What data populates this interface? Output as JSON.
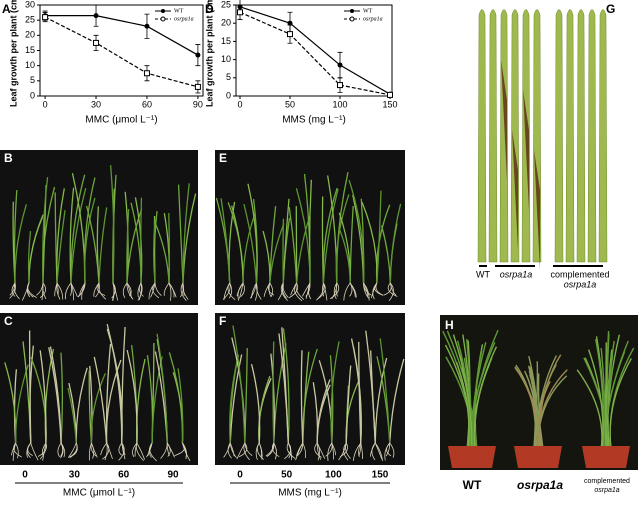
{
  "chart_data": [
    {
      "type": "line",
      "panel_label": "A",
      "y_label": "Leaf growth per plant (cm)",
      "x_label": "MMC (μmol L⁻¹)",
      "x": [
        0,
        30,
        60,
        90
      ],
      "xlim": [
        -3,
        93
      ],
      "xticks": [
        0,
        30,
        60,
        90
      ],
      "ylim": [
        0,
        30
      ],
      "yticks": [
        0,
        5,
        10,
        15,
        20,
        25,
        30
      ],
      "legend": "upper right",
      "series": [
        {
          "name": "WT",
          "color": "#000000",
          "marker": "filled",
          "dashed": false,
          "values": [
            26.5,
            26.5,
            23,
            13.5
          ],
          "errors": [
            1.5,
            3.5,
            4,
            3.5
          ]
        },
        {
          "name": "osrpa1a",
          "color": "#000000",
          "marker": "open",
          "dashed": true,
          "values": [
            26,
            17.5,
            7.5,
            3
          ],
          "errors": [
            1.5,
            2.5,
            2.5,
            2
          ]
        }
      ]
    },
    {
      "type": "line",
      "panel_label": "D",
      "y_label": "Leaf growth per plant (cm)",
      "x_label": "MMS (mg L⁻¹)",
      "x": [
        0,
        50,
        100,
        150
      ],
      "xlim": [
        -4,
        152
      ],
      "xticks": [
        0,
        50,
        100,
        150
      ],
      "ylim": [
        0,
        25
      ],
      "yticks": [
        0,
        5,
        10,
        15,
        20,
        25
      ],
      "legend": "upper right",
      "series": [
        {
          "name": "WT",
          "color": "#000000",
          "marker": "filled",
          "dashed": false,
          "values": [
            24.5,
            20,
            8.5,
            0.5
          ],
          "errors": [
            2,
            3,
            3.5,
            0.5
          ]
        },
        {
          "name": "osrpa1a",
          "color": "#000000",
          "marker": "open",
          "dashed": true,
          "values": [
            23,
            17,
            3,
            0.3
          ],
          "errors": [
            2,
            2.5,
            2,
            0.3
          ]
        }
      ]
    }
  ],
  "photos": [
    {
      "label": "B"
    },
    {
      "label": "C"
    },
    {
      "label": "E"
    },
    {
      "label": "F"
    },
    {
      "label": "G"
    },
    {
      "label": "H"
    }
  ],
  "photo_axes": [
    {
      "ticks": [
        "0",
        "30",
        "60",
        "90"
      ],
      "label": "MMC (μmol L⁻¹)"
    },
    {
      "ticks": [
        "0",
        "50",
        "100",
        "150"
      ],
      "label": "MMS (mg L⁻¹)"
    }
  ],
  "g_labels": {
    "wt": "WT",
    "mutant": "osrpa1a",
    "complemented": [
      "complemented",
      "osrpa1a"
    ]
  },
  "h_labels": {
    "wt": "WT",
    "mutant": "osrpa1a",
    "complemented": [
      "complemented",
      "osrpa1a"
    ]
  }
}
